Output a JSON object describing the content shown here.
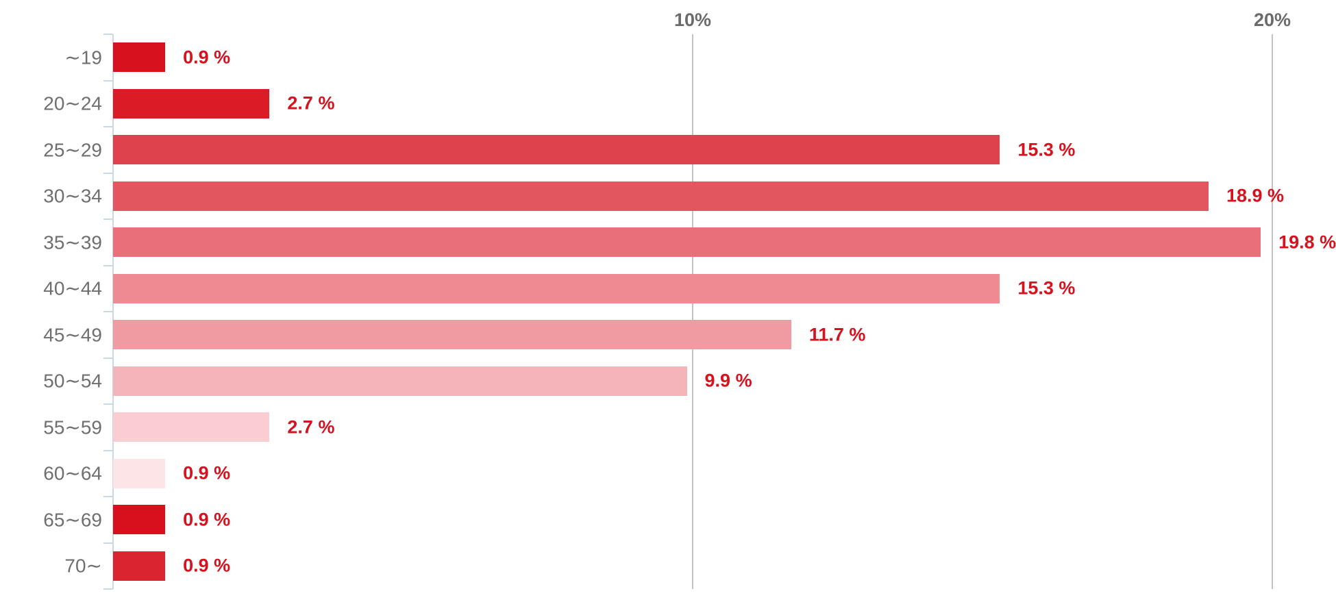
{
  "chart_data": {
    "type": "bar",
    "orientation": "horizontal",
    "title": "",
    "xlabel": "",
    "ylabel": "",
    "grid": "vertical-only",
    "legend": "none",
    "categories": [
      "∼19",
      "20∼24",
      "25∼29",
      "30∼34",
      "35∼39",
      "40∼44",
      "45∼49",
      "50∼54",
      "55∼59",
      "60∼64",
      "65∼69",
      "70∼"
    ],
    "values": [
      0.9,
      2.7,
      15.3,
      18.9,
      19.8,
      15.3,
      11.7,
      9.9,
      2.7,
      0.9,
      0.9,
      0.9
    ],
    "value_labels": [
      "0.9 %",
      "2.7 %",
      "15.3 %",
      "18.9 %",
      "19.8 %",
      "15.3 %",
      "11.7 %",
      "9.9 %",
      "2.7 %",
      "0.9 %",
      "0.9 %",
      "0.9 %"
    ],
    "bar_colors": [
      "#d8111e",
      "#da1c26",
      "#de424c",
      "#e2565f",
      "#e96f7a",
      "#ee8a92",
      "#f09ba2",
      "#f4b5ba",
      "#f9cdd2",
      "#fce4e7",
      "#d8101d",
      "#da2430"
    ],
    "xlim": [
      0,
      21.1
    ],
    "x_ticks": [
      {
        "value": 10,
        "label": "10%"
      },
      {
        "value": 20,
        "label": "20%"
      }
    ]
  },
  "colors": {
    "background": "#ffffff",
    "value_label": "#d7111d",
    "category_label": "#6f6f6f",
    "axis_tick_label": "#6b6b6b",
    "gridline": "#c2c2c2",
    "axis_line": "#c9d8e5"
  }
}
